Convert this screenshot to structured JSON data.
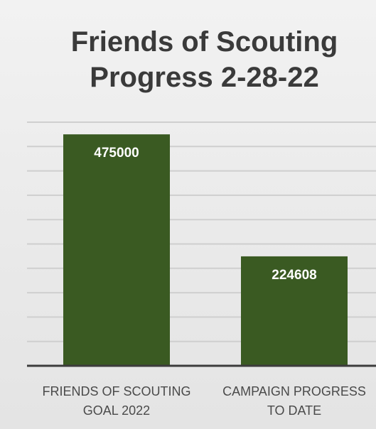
{
  "chart_data": {
    "type": "bar",
    "title_lines": [
      "Friends of Scouting",
      "Progress 2-28-22"
    ],
    "categories": [
      "FRIENDS OF SCOUTING GOAL 2022",
      "CAMPAIGN PROGRESS TO DATE"
    ],
    "category_lines": [
      [
        "FRIENDS OF SCOUTING",
        "GOAL 2022"
      ],
      [
        "CAMPAIGN PROGRESS",
        "TO DATE"
      ]
    ],
    "values": [
      475000,
      224608
    ],
    "data_labels": [
      "475000",
      "224608"
    ],
    "ylim": [
      0,
      500000
    ],
    "grid": true,
    "bar_color": "#3a5a22",
    "xlabel": "",
    "ylabel": ""
  }
}
